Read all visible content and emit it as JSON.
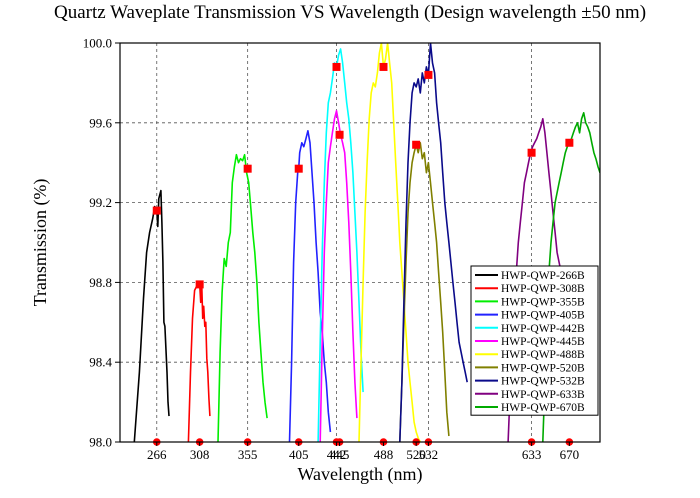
{
  "chart_data": {
    "type": "line",
    "title": "Quartz Waveplate Transmission VS Wavelength (Design wavelength ±50 nm)",
    "xlabel": "Wavelength (nm)",
    "ylabel": "Transmission (%)",
    "xlim": [
      230,
      700
    ],
    "ylim": [
      98.0,
      100.0
    ],
    "x_ticks": [
      266,
      308,
      355,
      405,
      442,
      445,
      488,
      520,
      532,
      633,
      670
    ],
    "x_tick_labels": [
      "266",
      "308",
      "355",
      "405",
      "442",
      "445",
      "488",
      "520",
      "532",
      "633",
      "670"
    ],
    "y_ticks": [
      98.0,
      98.4,
      98.8,
      99.2,
      99.6,
      100.0
    ],
    "y_tick_labels": [
      "98.0",
      "98.4",
      "98.8",
      "99.2",
      "99.6",
      "100.0"
    ],
    "grid": true,
    "legend_position": "bottom-right",
    "series": [
      {
        "name": "HWP-QWP-266B",
        "color": "#000000",
        "design": 266,
        "marker": 99.16,
        "x": [
          244,
          249,
          253,
          256,
          259,
          262,
          264,
          266,
          267,
          268,
          270,
          271,
          272,
          273,
          274,
          276,
          277,
          278
        ],
        "y": [
          98.0,
          98.35,
          98.72,
          98.95,
          99.05,
          99.12,
          99.18,
          99.16,
          99.08,
          99.22,
          99.26,
          99.1,
          98.9,
          98.6,
          98.58,
          98.35,
          98.2,
          98.13
        ]
      },
      {
        "name": "HWP-QWP-308B",
        "color": "#ff0000",
        "design": 308,
        "marker": 98.79,
        "x": [
          297,
          299,
          301,
          303,
          305,
          307,
          308,
          309,
          310,
          311,
          312,
          313,
          314,
          315,
          316,
          317,
          318
        ],
        "y": [
          98.0,
          98.35,
          98.62,
          98.76,
          98.78,
          98.8,
          98.79,
          98.7,
          98.8,
          98.62,
          98.68,
          98.58,
          98.6,
          98.42,
          98.35,
          98.22,
          98.13
        ]
      },
      {
        "name": "HWP-QWP-355B",
        "color": "#00ee00",
        "design": 355,
        "marker": 99.37,
        "x": [
          326,
          328,
          330,
          332,
          334,
          336,
          338,
          340,
          342,
          344,
          346,
          348,
          350,
          352,
          354,
          356,
          358,
          360,
          362,
          364,
          366,
          368,
          370,
          372,
          374
        ],
        "y": [
          98.0,
          98.45,
          98.75,
          98.92,
          98.88,
          99.0,
          99.05,
          99.3,
          99.38,
          99.44,
          99.4,
          99.42,
          99.41,
          99.44,
          99.35,
          99.3,
          99.18,
          99.05,
          98.95,
          98.8,
          98.6,
          98.45,
          98.3,
          98.2,
          98.12
        ]
      },
      {
        "name": "HWP-QWP-405B",
        "color": "#2222ff",
        "design": 405,
        "marker": 99.37,
        "x": [
          396,
          398,
          400,
          402,
          404,
          405,
          406,
          408,
          410,
          412,
          414,
          416,
          418,
          420,
          422,
          424,
          426,
          428,
          430,
          432,
          434,
          436
        ],
        "y": [
          98.0,
          98.4,
          98.9,
          99.2,
          99.35,
          99.37,
          99.45,
          99.5,
          99.48,
          99.52,
          99.56,
          99.5,
          99.35,
          99.2,
          99.0,
          98.85,
          98.65,
          98.55,
          98.4,
          98.3,
          98.15,
          98.05
        ]
      },
      {
        "name": "HWP-QWP-442B",
        "color": "#00ffff",
        "design": 442,
        "marker": 99.88,
        "x": [
          424,
          426,
          428,
          430,
          432,
          434,
          436,
          438,
          440,
          442,
          444,
          446,
          448,
          450,
          452,
          454,
          456,
          458,
          460,
          462,
          464,
          466,
          468
        ],
        "y": [
          98.0,
          98.5,
          98.95,
          99.3,
          99.55,
          99.7,
          99.75,
          99.82,
          99.9,
          99.88,
          99.94,
          99.97,
          99.9,
          99.8,
          99.7,
          99.62,
          99.5,
          99.35,
          99.15,
          98.95,
          98.7,
          98.45,
          98.25
        ]
      },
      {
        "name": "HWP-QWP-445B",
        "color": "#ff00ff",
        "design": 445,
        "marker": 99.54,
        "x": [
          426,
          428,
          430,
          432,
          434,
          436,
          438,
          440,
          442,
          444,
          446,
          448,
          450,
          452,
          454,
          456,
          458,
          460,
          462
        ],
        "y": [
          98.0,
          98.5,
          98.95,
          99.2,
          99.4,
          99.48,
          99.55,
          99.62,
          99.66,
          99.6,
          99.54,
          99.5,
          99.45,
          99.3,
          99.1,
          98.85,
          98.55,
          98.3,
          98.12
        ]
      },
      {
        "name": "HWP-QWP-488B",
        "color": "#ffff00",
        "design": 488,
        "marker": 99.88,
        "x": [
          464,
          466,
          468,
          470,
          472,
          474,
          476,
          478,
          480,
          482,
          484,
          486,
          488,
          490,
          492,
          494,
          496,
          498,
          500,
          502,
          504,
          506,
          508,
          510,
          512,
          514,
          516,
          518,
          520,
          522,
          524
        ],
        "y": [
          98.0,
          98.4,
          98.8,
          99.15,
          99.4,
          99.62,
          99.75,
          99.8,
          99.78,
          99.85,
          99.95,
          100.0,
          99.88,
          99.92,
          100.0,
          99.9,
          99.8,
          99.6,
          99.4,
          99.2,
          99.0,
          98.85,
          98.7,
          98.55,
          98.4,
          98.3,
          98.2,
          98.1,
          98.05,
          98.02,
          98.0
        ]
      },
      {
        "name": "HWP-QWP-520B",
        "color": "#808000",
        "design": 520,
        "marker": 99.49,
        "x": [
          504,
          506,
          508,
          510,
          512,
          514,
          516,
          518,
          520,
          522,
          524,
          526,
          528,
          530,
          532,
          534,
          536,
          538,
          540,
          542,
          544,
          546,
          548,
          550,
          552
        ],
        "y": [
          98.0,
          98.3,
          98.6,
          98.9,
          99.15,
          99.3,
          99.4,
          99.45,
          99.49,
          99.45,
          99.5,
          99.42,
          99.45,
          99.35,
          99.4,
          99.3,
          99.2,
          99.1,
          99.0,
          98.85,
          98.7,
          98.55,
          98.35,
          98.15,
          98.03
        ]
      },
      {
        "name": "HWP-QWP-532B",
        "color": "#0a0a8a",
        "design": 532,
        "marker": 99.84,
        "x": [
          504,
          506,
          508,
          510,
          512,
          514,
          516,
          518,
          520,
          522,
          524,
          526,
          528,
          530,
          532,
          534,
          536,
          538,
          540,
          542,
          544,
          546,
          548,
          550,
          552,
          554,
          556,
          558,
          560,
          562,
          564,
          566,
          568,
          570
        ],
        "y": [
          98.0,
          98.3,
          98.7,
          99.1,
          99.4,
          99.6,
          99.75,
          99.8,
          99.78,
          99.82,
          99.75,
          99.85,
          99.8,
          99.88,
          99.84,
          100.0,
          99.9,
          99.85,
          99.7,
          99.6,
          99.5,
          99.35,
          99.2,
          99.1,
          99.0,
          98.9,
          98.8,
          98.7,
          98.6,
          98.5,
          98.45,
          98.4,
          98.35,
          98.3
        ]
      },
      {
        "name": "HWP-QWP-633B",
        "color": "#800080",
        "design": 633,
        "marker": 99.45,
        "x": [
          610,
          612,
          614,
          616,
          618,
          620,
          622,
          624,
          626,
          628,
          630,
          632,
          634,
          636,
          638,
          640,
          642,
          644,
          646,
          648,
          650,
          652,
          654,
          656,
          658,
          660,
          662,
          664,
          666,
          668
        ],
        "y": [
          98.0,
          98.25,
          98.5,
          98.7,
          98.85,
          99.0,
          99.1,
          99.2,
          99.3,
          99.35,
          99.4,
          99.45,
          99.48,
          99.5,
          99.52,
          99.55,
          99.58,
          99.62,
          99.55,
          99.45,
          99.35,
          99.25,
          99.15,
          99.05,
          98.95,
          98.9,
          98.85,
          98.8,
          98.75,
          98.7
        ]
      },
      {
        "name": "HWP-QWP-670B",
        "color": "#00aa00",
        "design": 670,
        "marker": 99.5,
        "x": [
          644,
          646,
          648,
          650,
          652,
          654,
          656,
          658,
          660,
          662,
          664,
          666,
          668,
          670,
          672,
          674,
          676,
          678,
          680,
          682,
          684,
          686,
          688,
          690,
          692,
          694,
          696,
          698,
          700
        ],
        "y": [
          98.0,
          98.3,
          98.6,
          98.85,
          99.0,
          99.1,
          99.2,
          99.25,
          99.3,
          99.35,
          99.4,
          99.45,
          99.48,
          99.5,
          99.52,
          99.55,
          99.58,
          99.6,
          99.55,
          99.62,
          99.65,
          99.6,
          99.58,
          99.55,
          99.5,
          99.45,
          99.42,
          99.38,
          99.35
        ]
      }
    ]
  }
}
